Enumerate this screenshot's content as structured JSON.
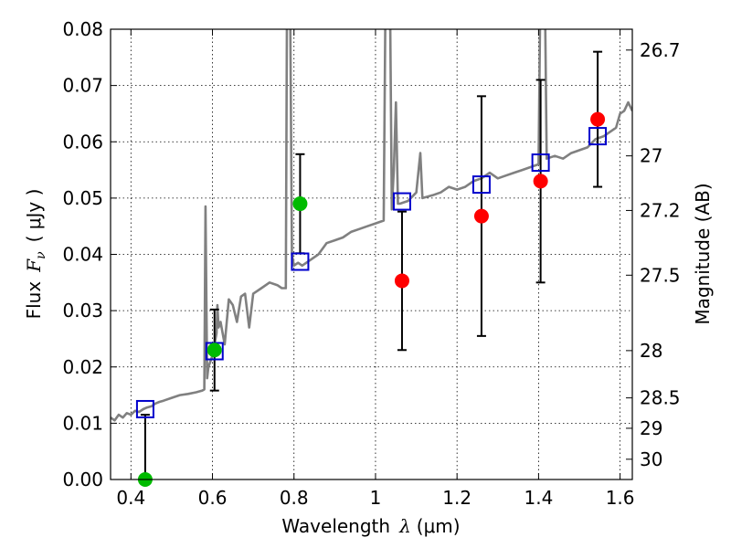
{
  "chart_data": {
    "type": "scatter",
    "xlabel": "Wavelength",
    "xlabel_symbol": "λ",
    "xlabel_unit": "(μm)",
    "ylabel": "Flux",
    "ylabel_symbol": "F",
    "ylabel_subscript": "ν",
    "ylabel_unit": "( μJy )",
    "ylabel_right": "Magnitude (AB)",
    "xlim": [
      0.35,
      1.63
    ],
    "ylim": [
      0.0,
      0.08
    ],
    "grid": true,
    "x_ticks": [
      0.4,
      0.6,
      0.8,
      1.0,
      1.2,
      1.4,
      1.6
    ],
    "x_tick_labels": [
      "0.4",
      "0.6",
      "0.8",
      "1",
      "1.2",
      "1.4",
      "1.6"
    ],
    "y_ticks": [
      0.0,
      0.01,
      0.02,
      0.03,
      0.04,
      0.05,
      0.06,
      0.07,
      0.08
    ],
    "y_tick_labels": [
      "0.00",
      "0.01",
      "0.02",
      "0.03",
      "0.04",
      "0.05",
      "0.06",
      "0.07",
      "0.08"
    ],
    "right_ticks": [
      {
        "label": "26.7",
        "flux": 0.0763
      },
      {
        "label": "27",
        "flux": 0.0575
      },
      {
        "label": "27.2",
        "flux": 0.0478
      },
      {
        "label": "27.5",
        "flux": 0.0363
      },
      {
        "label": "28",
        "flux": 0.0229
      },
      {
        "label": "28.5",
        "flux": 0.0145
      },
      {
        "label": "29",
        "flux": 0.0091
      },
      {
        "label": "30",
        "flux": 0.0036
      }
    ],
    "colors": {
      "spectrum": "#808080",
      "model_box": "#0000cc",
      "observed_red": "#ff0000",
      "observed_green": "#00bb00",
      "errorbar": "#000000",
      "grid": "#000000"
    },
    "series": [
      {
        "name": "model spectrum",
        "kind": "line",
        "points": [
          [
            0.35,
            0.011
          ],
          [
            0.36,
            0.0105
          ],
          [
            0.37,
            0.0115
          ],
          [
            0.38,
            0.011
          ],
          [
            0.39,
            0.0118
          ],
          [
            0.4,
            0.0115
          ],
          [
            0.41,
            0.0122
          ],
          [
            0.42,
            0.012
          ],
          [
            0.43,
            0.0125
          ],
          [
            0.44,
            0.0128
          ],
          [
            0.45,
            0.013
          ],
          [
            0.46,
            0.0135
          ],
          [
            0.47,
            0.0138
          ],
          [
            0.48,
            0.014
          ],
          [
            0.5,
            0.0145
          ],
          [
            0.52,
            0.015
          ],
          [
            0.54,
            0.0152
          ],
          [
            0.56,
            0.0155
          ],
          [
            0.575,
            0.0158
          ],
          [
            0.58,
            0.016
          ],
          [
            0.583,
            0.0485
          ],
          [
            0.587,
            0.018
          ],
          [
            0.59,
            0.02
          ],
          [
            0.6,
            0.022
          ],
          [
            0.61,
            0.026
          ],
          [
            0.612,
            0.031
          ],
          [
            0.615,
            0.027
          ],
          [
            0.62,
            0.028
          ],
          [
            0.63,
            0.024
          ],
          [
            0.64,
            0.032
          ],
          [
            0.65,
            0.031
          ],
          [
            0.66,
            0.028
          ],
          [
            0.67,
            0.0325
          ],
          [
            0.68,
            0.033
          ],
          [
            0.69,
            0.027
          ],
          [
            0.7,
            0.033
          ],
          [
            0.72,
            0.034
          ],
          [
            0.74,
            0.035
          ],
          [
            0.76,
            0.0345
          ],
          [
            0.77,
            0.034
          ],
          [
            0.78,
            0.034
          ],
          [
            0.783,
            0.09
          ],
          [
            0.79,
            0.09
          ],
          [
            0.795,
            0.04
          ],
          [
            0.8,
            0.038
          ],
          [
            0.81,
            0.0385
          ],
          [
            0.82,
            0.038
          ],
          [
            0.84,
            0.039
          ],
          [
            0.86,
            0.04
          ],
          [
            0.88,
            0.042
          ],
          [
            0.9,
            0.0425
          ],
          [
            0.92,
            0.043
          ],
          [
            0.94,
            0.044
          ],
          [
            0.96,
            0.0445
          ],
          [
            0.98,
            0.045
          ],
          [
            1.0,
            0.0455
          ],
          [
            1.02,
            0.046
          ],
          [
            1.025,
            0.09
          ],
          [
            1.035,
            0.09
          ],
          [
            1.04,
            0.048
          ],
          [
            1.045,
            0.055
          ],
          [
            1.05,
            0.067
          ],
          [
            1.055,
            0.049
          ],
          [
            1.06,
            0.049
          ],
          [
            1.08,
            0.0495
          ],
          [
            1.1,
            0.051
          ],
          [
            1.11,
            0.058
          ],
          [
            1.115,
            0.05
          ],
          [
            1.14,
            0.0505
          ],
          [
            1.16,
            0.051
          ],
          [
            1.18,
            0.052
          ],
          [
            1.2,
            0.0515
          ],
          [
            1.22,
            0.052
          ],
          [
            1.24,
            0.053
          ],
          [
            1.26,
            0.0535
          ],
          [
            1.28,
            0.0545
          ],
          [
            1.3,
            0.0535
          ],
          [
            1.32,
            0.054
          ],
          [
            1.34,
            0.0545
          ],
          [
            1.36,
            0.055
          ],
          [
            1.38,
            0.0555
          ],
          [
            1.4,
            0.056
          ],
          [
            1.405,
            0.09
          ],
          [
            1.415,
            0.09
          ],
          [
            1.42,
            0.057
          ],
          [
            1.44,
            0.0575
          ],
          [
            1.46,
            0.057
          ],
          [
            1.48,
            0.058
          ],
          [
            1.5,
            0.0585
          ],
          [
            1.52,
            0.059
          ],
          [
            1.54,
            0.0605
          ],
          [
            1.56,
            0.061
          ],
          [
            1.58,
            0.062
          ],
          [
            1.59,
            0.0625
          ],
          [
            1.6,
            0.065
          ],
          [
            1.61,
            0.0655
          ],
          [
            1.62,
            0.067
          ],
          [
            1.63,
            0.0655
          ]
        ]
      },
      {
        "name": "model photometry",
        "kind": "square",
        "points": [
          [
            0.435,
            0.0125
          ],
          [
            0.605,
            0.0228
          ],
          [
            0.815,
            0.0387
          ],
          [
            1.065,
            0.0494
          ],
          [
            1.26,
            0.0524
          ],
          [
            1.405,
            0.0563
          ],
          [
            1.545,
            0.061
          ]
        ]
      },
      {
        "name": "observed detections",
        "kind": "circle-red",
        "points": [
          {
            "x": 1.065,
            "y": 0.0353,
            "err_low": 0.0123,
            "err_high": 0.0123
          },
          {
            "x": 1.26,
            "y": 0.0468,
            "err_low": 0.0213,
            "err_high": 0.0213
          },
          {
            "x": 1.405,
            "y": 0.053,
            "err_low": 0.018,
            "err_high": 0.018
          },
          {
            "x": 1.545,
            "y": 0.064,
            "err_low": 0.012,
            "err_high": 0.012
          }
        ]
      },
      {
        "name": "observed (green)",
        "kind": "circle-green",
        "points": [
          {
            "x": 0.435,
            "y": 0.0,
            "err_low": 0.0,
            "err_high": 0.0115
          },
          {
            "x": 0.605,
            "y": 0.023,
            "err_low": 0.0072,
            "err_high": 0.0072
          },
          {
            "x": 0.815,
            "y": 0.049,
            "err_low": 0.0088,
            "err_high": 0.0088
          }
        ]
      }
    ]
  }
}
